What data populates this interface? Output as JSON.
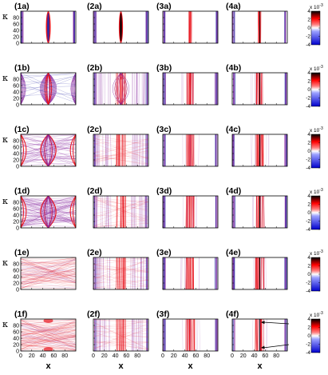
{
  "chart_data": {
    "type": "heatmap",
    "layout": {
      "rows": 6,
      "columns": 4
    },
    "panels": [
      [
        "(1a)",
        "(2a)",
        "(3a)",
        "(4a)"
      ],
      [
        "(1b)",
        "(2b)",
        "(3b)",
        "(4b)"
      ],
      [
        "(1c)",
        "(2c)",
        "(3c)",
        "(4c)"
      ],
      [
        "(1d)",
        "(2d)",
        "(3d)",
        "(4d)"
      ],
      [
        "(1e)",
        "(2e)",
        "(3e)",
        "(4e)"
      ],
      [
        "(1f)",
        "(2f)",
        "(3f)",
        "(4f)"
      ]
    ],
    "xlabel": "x",
    "ylabel": "κ",
    "xlim": [
      0,
      100
    ],
    "ylim": [
      0,
      100
    ],
    "xticks": [
      0,
      20,
      40,
      60,
      80
    ],
    "yticks": [
      0,
      20,
      40,
      60,
      80
    ],
    "colorbar": {
      "exponent": "x 10",
      "exponent_power": "-3",
      "ticks": [
        4,
        2,
        0,
        -2,
        -4
      ],
      "range": [
        -4,
        4
      ],
      "colors": [
        "#0000ff",
        "#ffffff",
        "#ff0000",
        "#000000"
      ]
    },
    "annotations": {
      "panel": "(4f)",
      "type": "two arrows"
    }
  },
  "colors": {
    "red": "#e8141c",
    "purple": "#8a2ba0",
    "blue": "#2a2aa8"
  }
}
